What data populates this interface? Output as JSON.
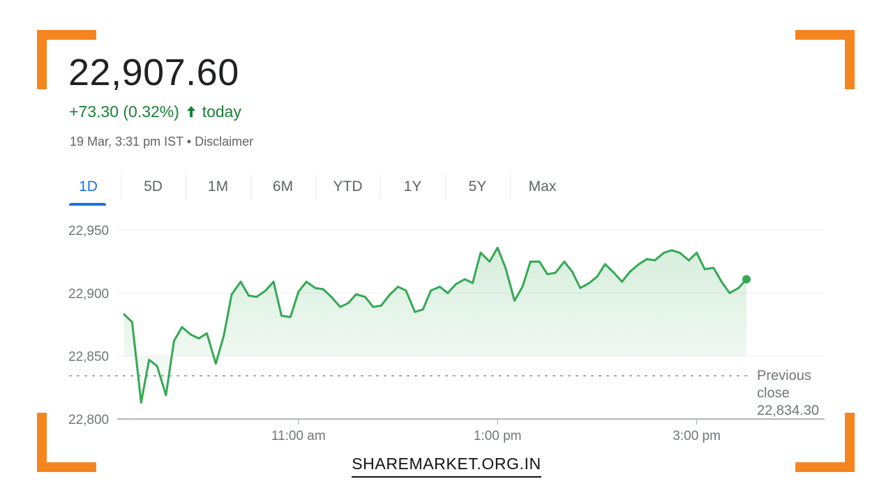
{
  "quote": {
    "price": "22,907.60",
    "change": "+73.30 (0.32%)",
    "change_suffix": "today",
    "timestamp": "19 Mar, 3:31 pm IST",
    "separator": "•",
    "disclaimer_label": "Disclaimer"
  },
  "tabs": [
    {
      "label": "1D",
      "active": true
    },
    {
      "label": "5D",
      "active": false
    },
    {
      "label": "1M",
      "active": false
    },
    {
      "label": "6M",
      "active": false
    },
    {
      "label": "YTD",
      "active": false
    },
    {
      "label": "1Y",
      "active": false
    },
    {
      "label": "5Y",
      "active": false
    },
    {
      "label": "Max",
      "active": false
    }
  ],
  "colors": {
    "line": "#34a853",
    "positive": "#188038",
    "tab_active": "#1a73e8",
    "brand_corner": "#f5851f"
  },
  "icons": {
    "change_direction": "arrow-up-icon"
  },
  "chart_data": {
    "type": "area",
    "title": "",
    "xlabel": "",
    "ylabel": "",
    "ylim": [
      22800,
      22950
    ],
    "y_ticks": [
      22800,
      22850,
      22900,
      22950
    ],
    "y_tick_labels": [
      "22,800",
      "22,850",
      "22,900",
      "22,950"
    ],
    "x_range_hours": [
      9.25,
      15.5
    ],
    "x_ticks": [
      11,
      13,
      15
    ],
    "x_tick_labels": [
      "11:00 am",
      "1:00 pm",
      "3:00 pm"
    ],
    "grid": true,
    "previous_close": {
      "value": 22834.3,
      "label_lines": [
        "Previous",
        "close",
        "22,834.30"
      ]
    },
    "series": [
      {
        "x": [
          9.25,
          9.33,
          9.42,
          9.5,
          9.58,
          9.67,
          9.75,
          9.83,
          9.92,
          10.0,
          10.08,
          10.17,
          10.25,
          10.33,
          10.42,
          10.5,
          10.58,
          10.67,
          10.75,
          10.83,
          10.92,
          11.0,
          11.08,
          11.17,
          11.25,
          11.33,
          11.42,
          11.5,
          11.58,
          11.67,
          11.75,
          11.83,
          11.92,
          12.0,
          12.08,
          12.17,
          12.25,
          12.33,
          12.42,
          12.5,
          12.58,
          12.67,
          12.75,
          12.83,
          12.92,
          13.0,
          13.08,
          13.17,
          13.25,
          13.33,
          13.42,
          13.5,
          13.58,
          13.67,
          13.75,
          13.83,
          13.92,
          14.0,
          14.08,
          14.17,
          14.25,
          14.33,
          14.42,
          14.5,
          14.58,
          14.67,
          14.75,
          14.83,
          14.92,
          15.0,
          15.08,
          15.17,
          15.25,
          15.33,
          15.42,
          15.5
        ],
        "y": [
          22883,
          22877,
          22813,
          22847,
          22842,
          22819,
          22862,
          22873,
          22867,
          22864,
          22868,
          22844,
          22866,
          22899,
          22909,
          22898,
          22897,
          22902,
          22909,
          22882,
          22881,
          22901,
          22909,
          22904,
          22903,
          22897,
          22889,
          22892,
          22899,
          22897,
          22889,
          22890,
          22899,
          22905,
          22902,
          22885,
          22887,
          22902,
          22905,
          22900,
          22907,
          22911,
          22908,
          22932,
          22925,
          22936,
          22920,
          22894,
          22905,
          22925,
          22925,
          22915,
          22916,
          22925,
          22917,
          22904,
          22908,
          22913,
          22923,
          22916,
          22909,
          22917,
          22923,
          22927,
          22926,
          22932,
          22934,
          22932,
          22926,
          22932,
          22919,
          22920,
          22909,
          22900,
          22904,
          22911
        ]
      }
    ]
  },
  "footer": {
    "brand": "SHAREMARKET.ORG.IN"
  }
}
